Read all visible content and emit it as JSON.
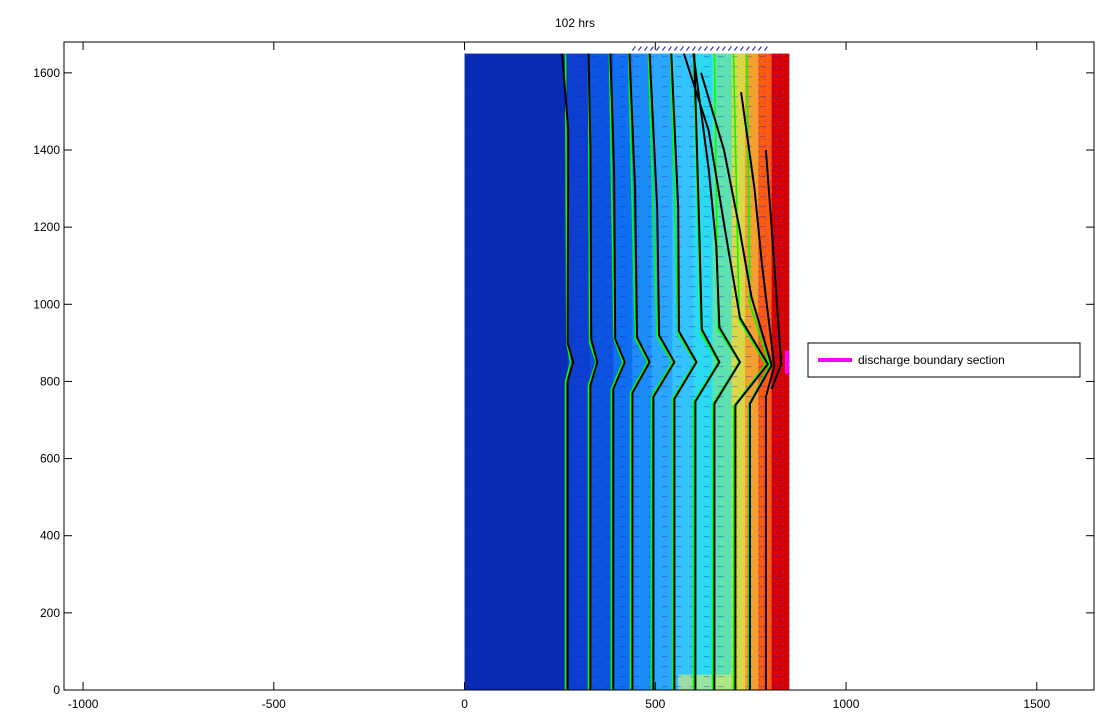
{
  "chart_data": {
    "type": "heatmap",
    "title": "102 hrs",
    "xlabel": "",
    "ylabel": "",
    "xlim": [
      -1050,
      1650
    ],
    "ylim": [
      0,
      1680
    ],
    "xticks": [
      -1000,
      -500,
      0,
      500,
      1000,
      1500
    ],
    "yticks": [
      0,
      200,
      400,
      600,
      800,
      1000,
      1200,
      1400,
      1600
    ],
    "grid": false,
    "domain": {
      "x": [
        0,
        850
      ],
      "y": [
        0,
        1650
      ]
    },
    "discharge_section": {
      "x": 845,
      "y": [
        820,
        880
      ]
    },
    "legend": {
      "placement": "right",
      "entries": [
        {
          "label": "discharge boundary section",
          "color": "#ff00ff"
        }
      ]
    },
    "colors": {
      "frame": "#000000",
      "background": "#ffffff",
      "discharge": "#ff00ff",
      "contour_dark": "#000000",
      "contour_light": "#00ff00",
      "vector": "#1010cc"
    },
    "color_bands": [
      {
        "x0": 0,
        "x1": 270,
        "color": "#0a2bb5"
      },
      {
        "x0": 270,
        "x1": 330,
        "color": "#0c3fd0"
      },
      {
        "x0": 330,
        "x1": 390,
        "color": "#0d55e0"
      },
      {
        "x0": 390,
        "x1": 440,
        "color": "#0f6ff0"
      },
      {
        "x0": 440,
        "x1": 490,
        "color": "#1c8cf8"
      },
      {
        "x0": 490,
        "x1": 545,
        "color": "#2aa7fc"
      },
      {
        "x0": 545,
        "x1": 600,
        "color": "#35c3ff"
      },
      {
        "x0": 600,
        "x1": 650,
        "color": "#2bdaf0"
      },
      {
        "x0": 650,
        "x1": 700,
        "color": "#5ee0b0"
      },
      {
        "x0": 700,
        "x1": 735,
        "color": "#d8d84a"
      },
      {
        "x0": 735,
        "x1": 770,
        "color": "#f2a030"
      },
      {
        "x0": 770,
        "x1": 805,
        "color": "#ff5a10"
      },
      {
        "x0": 805,
        "x1": 850,
        "color": "#d80000"
      }
    ],
    "bottom_yellow_patch": {
      "x": [
        560,
        700
      ],
      "y": [
        0,
        40
      ],
      "color": "#f0f060"
    },
    "contours_green": [
      [
        [
          265,
          0
        ],
        [
          265,
          800
        ],
        [
          278,
          850
        ],
        [
          268,
          900
        ],
        [
          265,
          1650
        ]
      ],
      [
        [
          325,
          0
        ],
        [
          325,
          790
        ],
        [
          345,
          850
        ],
        [
          328,
          900
        ],
        [
          325,
          1650
        ]
      ],
      [
        [
          385,
          0
        ],
        [
          385,
          780
        ],
        [
          415,
          850
        ],
        [
          392,
          910
        ],
        [
          380,
          1650
        ]
      ],
      [
        [
          435,
          0
        ],
        [
          435,
          770
        ],
        [
          480,
          850
        ],
        [
          448,
          910
        ],
        [
          430,
          1650
        ]
      ],
      [
        [
          490,
          0
        ],
        [
          490,
          760
        ],
        [
          545,
          850
        ],
        [
          505,
          915
        ],
        [
          482,
          1650
        ]
      ],
      [
        [
          545,
          0
        ],
        [
          545,
          755
        ],
        [
          605,
          850
        ],
        [
          560,
          920
        ],
        [
          540,
          1650
        ]
      ],
      [
        [
          600,
          0
        ],
        [
          600,
          745
        ],
        [
          665,
          850
        ],
        [
          620,
          925
        ],
        [
          600,
          1650
        ]
      ],
      [
        [
          650,
          0
        ],
        [
          650,
          740
        ],
        [
          720,
          850
        ],
        [
          665,
          935
        ],
        [
          655,
          1650
        ]
      ],
      [
        [
          705,
          0
        ],
        [
          705,
          735
        ],
        [
          790,
          845
        ],
        [
          720,
          960
        ],
        [
          705,
          1650
        ]
      ],
      [
        [
          745,
          0
        ],
        [
          745,
          740
        ],
        [
          800,
          842
        ],
        [
          748,
          1000
        ],
        [
          740,
          1650
        ]
      ]
    ],
    "contours_black": [
      [
        [
          270,
          0
        ],
        [
          270,
          800
        ],
        [
          285,
          850
        ],
        [
          270,
          900
        ],
        [
          272,
          1450
        ],
        [
          258,
          1620
        ],
        [
          255,
          1650
        ]
      ],
      [
        [
          330,
          0
        ],
        [
          330,
          790
        ],
        [
          348,
          850
        ],
        [
          332,
          910
        ],
        [
          330,
          1400
        ],
        [
          325,
          1650
        ]
      ],
      [
        [
          390,
          0
        ],
        [
          390,
          780
        ],
        [
          420,
          850
        ],
        [
          395,
          910
        ],
        [
          392,
          1350
        ],
        [
          382,
          1650
        ]
      ],
      [
        [
          440,
          0
        ],
        [
          440,
          770
        ],
        [
          485,
          850
        ],
        [
          452,
          915
        ],
        [
          447,
          1300
        ],
        [
          432,
          1650
        ]
      ],
      [
        [
          495,
          0
        ],
        [
          495,
          760
        ],
        [
          550,
          850
        ],
        [
          510,
          920
        ],
        [
          505,
          1250
        ],
        [
          485,
          1650
        ]
      ],
      [
        [
          550,
          0
        ],
        [
          550,
          755
        ],
        [
          608,
          850
        ],
        [
          562,
          930
        ],
        [
          560,
          1250
        ],
        [
          542,
          1650
        ]
      ],
      [
        [
          605,
          0
        ],
        [
          605,
          748
        ],
        [
          668,
          850
        ],
        [
          622,
          935
        ],
        [
          615,
          1200
        ],
        [
          602,
          1650
        ]
      ],
      [
        [
          655,
          0
        ],
        [
          655,
          742
        ],
        [
          722,
          850
        ],
        [
          668,
          940
        ],
        [
          660,
          1150
        ],
        [
          640,
          1350
        ],
        [
          600,
          1650
        ]
      ],
      [
        [
          710,
          0
        ],
        [
          710,
          738
        ],
        [
          795,
          845
        ],
        [
          722,
          965
        ],
        [
          690,
          1150
        ],
        [
          640,
          1450
        ],
        [
          575,
          1650
        ]
      ],
      [
        [
          748,
          0
        ],
        [
          748,
          742
        ],
        [
          805,
          842
        ],
        [
          752,
          1020
        ],
        [
          720,
          1200
        ],
        [
          680,
          1400
        ],
        [
          620,
          1600
        ]
      ],
      [
        [
          790,
          0
        ],
        [
          790,
          760
        ],
        [
          812,
          840
        ],
        [
          780,
          1100
        ],
        [
          760,
          1300
        ],
        [
          725,
          1550
        ]
      ],
      [
        [
          805,
          780
        ],
        [
          830,
          845
        ],
        [
          805,
          1200
        ],
        [
          790,
          1400
        ]
      ]
    ]
  }
}
